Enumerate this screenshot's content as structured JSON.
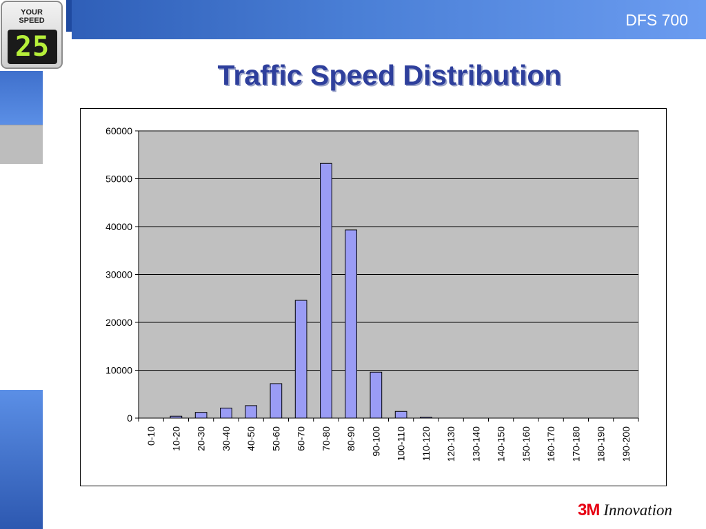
{
  "header": {
    "title": "DFS 700"
  },
  "logo": {
    "line1": "YOUR",
    "line2": "SPEED",
    "digits": "25"
  },
  "slide": {
    "title": "Traffic Speed Distribution"
  },
  "brand": {
    "mark": "3M",
    "word": "Innovation"
  },
  "colors": {
    "bar": "#9a9cf5",
    "plot_bg": "#c0c0c0",
    "banner": "#4a7fd6",
    "title": "#2e3f9c"
  },
  "chart_data": {
    "type": "bar",
    "title": "",
    "xlabel": "",
    "ylabel": "",
    "ylim": [
      0,
      60000
    ],
    "yticks": [
      0,
      10000,
      20000,
      30000,
      40000,
      50000,
      60000
    ],
    "grid": true,
    "legend": "none",
    "categories": [
      "0-10",
      "10-20",
      "20-30",
      "30-40",
      "40-50",
      "50-60",
      "60-70",
      "70-80",
      "80-90",
      "90-100",
      "100-110",
      "110-120",
      "120-130",
      "130-140",
      "140-150",
      "150-160",
      "160-170",
      "170-180",
      "180-190",
      "190-200"
    ],
    "values": [
      0,
      400,
      1200,
      2100,
      2600,
      7200,
      24600,
      53200,
      39300,
      9600,
      1400,
      200,
      0,
      0,
      0,
      0,
      0,
      0,
      0,
      0
    ]
  }
}
